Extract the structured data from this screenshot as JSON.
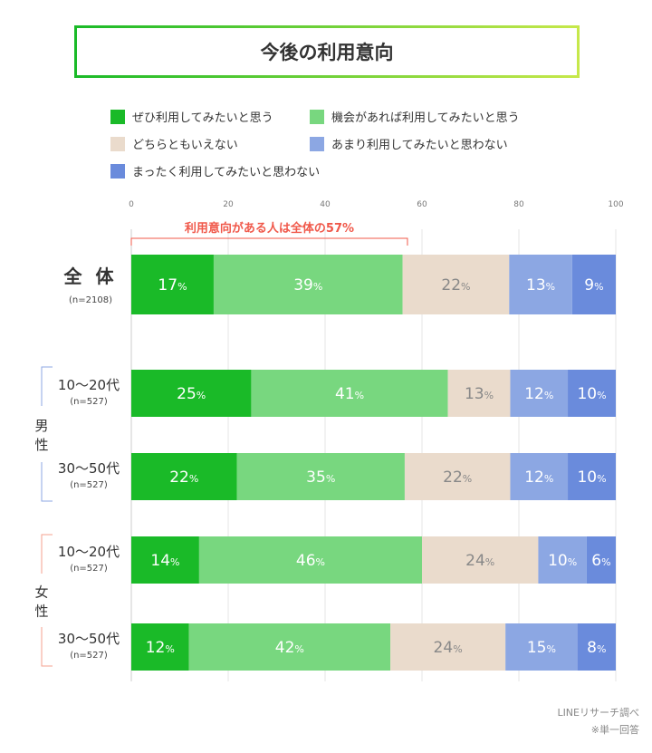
{
  "title": "今後の利用意向",
  "chart_data": {
    "type": "bar",
    "orientation": "horizontal-stacked",
    "title": "今後の利用意向",
    "xlim": [
      0,
      100
    ],
    "xticks": [
      "0",
      "20",
      "40",
      "60",
      "80",
      "100"
    ],
    "grid": true,
    "legend_position": "top",
    "series": [
      {
        "name": "ぜひ利用してみたいと思う",
        "color": "#1aba28",
        "label_color": "#ffffff"
      },
      {
        "name": "機会があれば利用してみたいと思う",
        "color": "#78d77f",
        "label_color": "#ffffff"
      },
      {
        "name": "どちらともいえない",
        "color": "#eadbcc",
        "label_color": "#888888"
      },
      {
        "name": "あまり利用してみたいと思わない",
        "color": "#8ca7e3",
        "label_color": "#ffffff"
      },
      {
        "name": "まったく利用してみたいと思わない",
        "color": "#6a8bdc",
        "label_color": "#ffffff"
      }
    ],
    "rows": [
      {
        "label": "全 体",
        "n": "(n=2108)",
        "values": [
          17,
          39,
          22,
          13,
          9
        ]
      },
      {
        "label": "10〜20代",
        "n": "(n=527)",
        "values": [
          25,
          41,
          13,
          12,
          10
        ]
      },
      {
        "label": "30〜50代",
        "n": "(n=527)",
        "values": [
          22,
          35,
          22,
          12,
          10
        ]
      },
      {
        "label": "10〜20代",
        "n": "(n=527)",
        "values": [
          14,
          46,
          24,
          10,
          6
        ]
      },
      {
        "label": "30〜50代",
        "n": "(n=527)",
        "values": [
          12,
          42,
          24,
          15,
          8
        ]
      }
    ],
    "groups": [
      {
        "label": "男性",
        "color": "#8ca7e3"
      },
      {
        "label": "女性",
        "color": "#f5a28f"
      }
    ],
    "annotation": {
      "text": "利用意向がある人は全体の57%",
      "value": 57,
      "color": "#f0584a"
    },
    "percent_unit": "%"
  },
  "footer": {
    "source": "LINEリサーチ調べ",
    "note": "※単一回答"
  }
}
